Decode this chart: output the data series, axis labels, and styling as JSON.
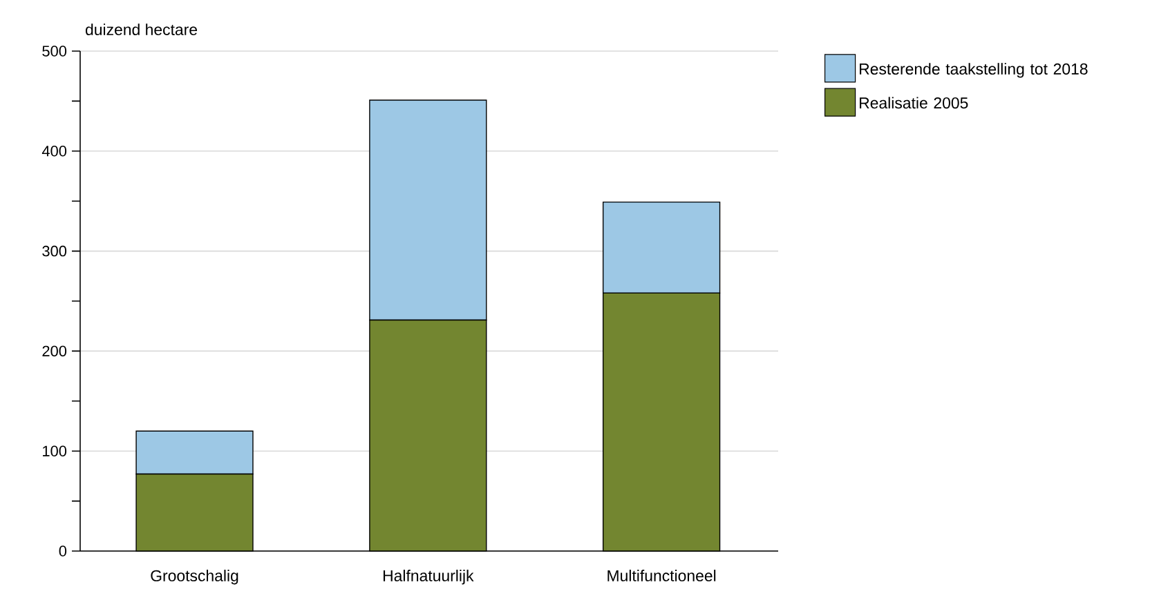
{
  "chart_data": {
    "type": "bar",
    "stacked": true,
    "ylabel": "duizend hectare",
    "categories": [
      "Grootschalig",
      "Halfnatuurlijk",
      "Multifunctioneel"
    ],
    "series": [
      {
        "name": "Realisatie 2005",
        "color": "#738630",
        "values": [
          77,
          231,
          258
        ]
      },
      {
        "name": "Resterende taakstelling tot 2018",
        "color": "#9dc8e5",
        "values": [
          43,
          220,
          91
        ]
      }
    ],
    "ylim": [
      0,
      500
    ],
    "yticks": [
      0,
      {
        "value": 50,
        "label": null
      },
      100,
      {
        "value": 150,
        "label": null
      },
      200,
      {
        "value": 250,
        "label": null
      },
      300,
      {
        "value": 350,
        "label": null
      },
      400,
      {
        "value": 450,
        "label": null
      },
      500
    ],
    "grid": "y",
    "legend": "top right"
  }
}
